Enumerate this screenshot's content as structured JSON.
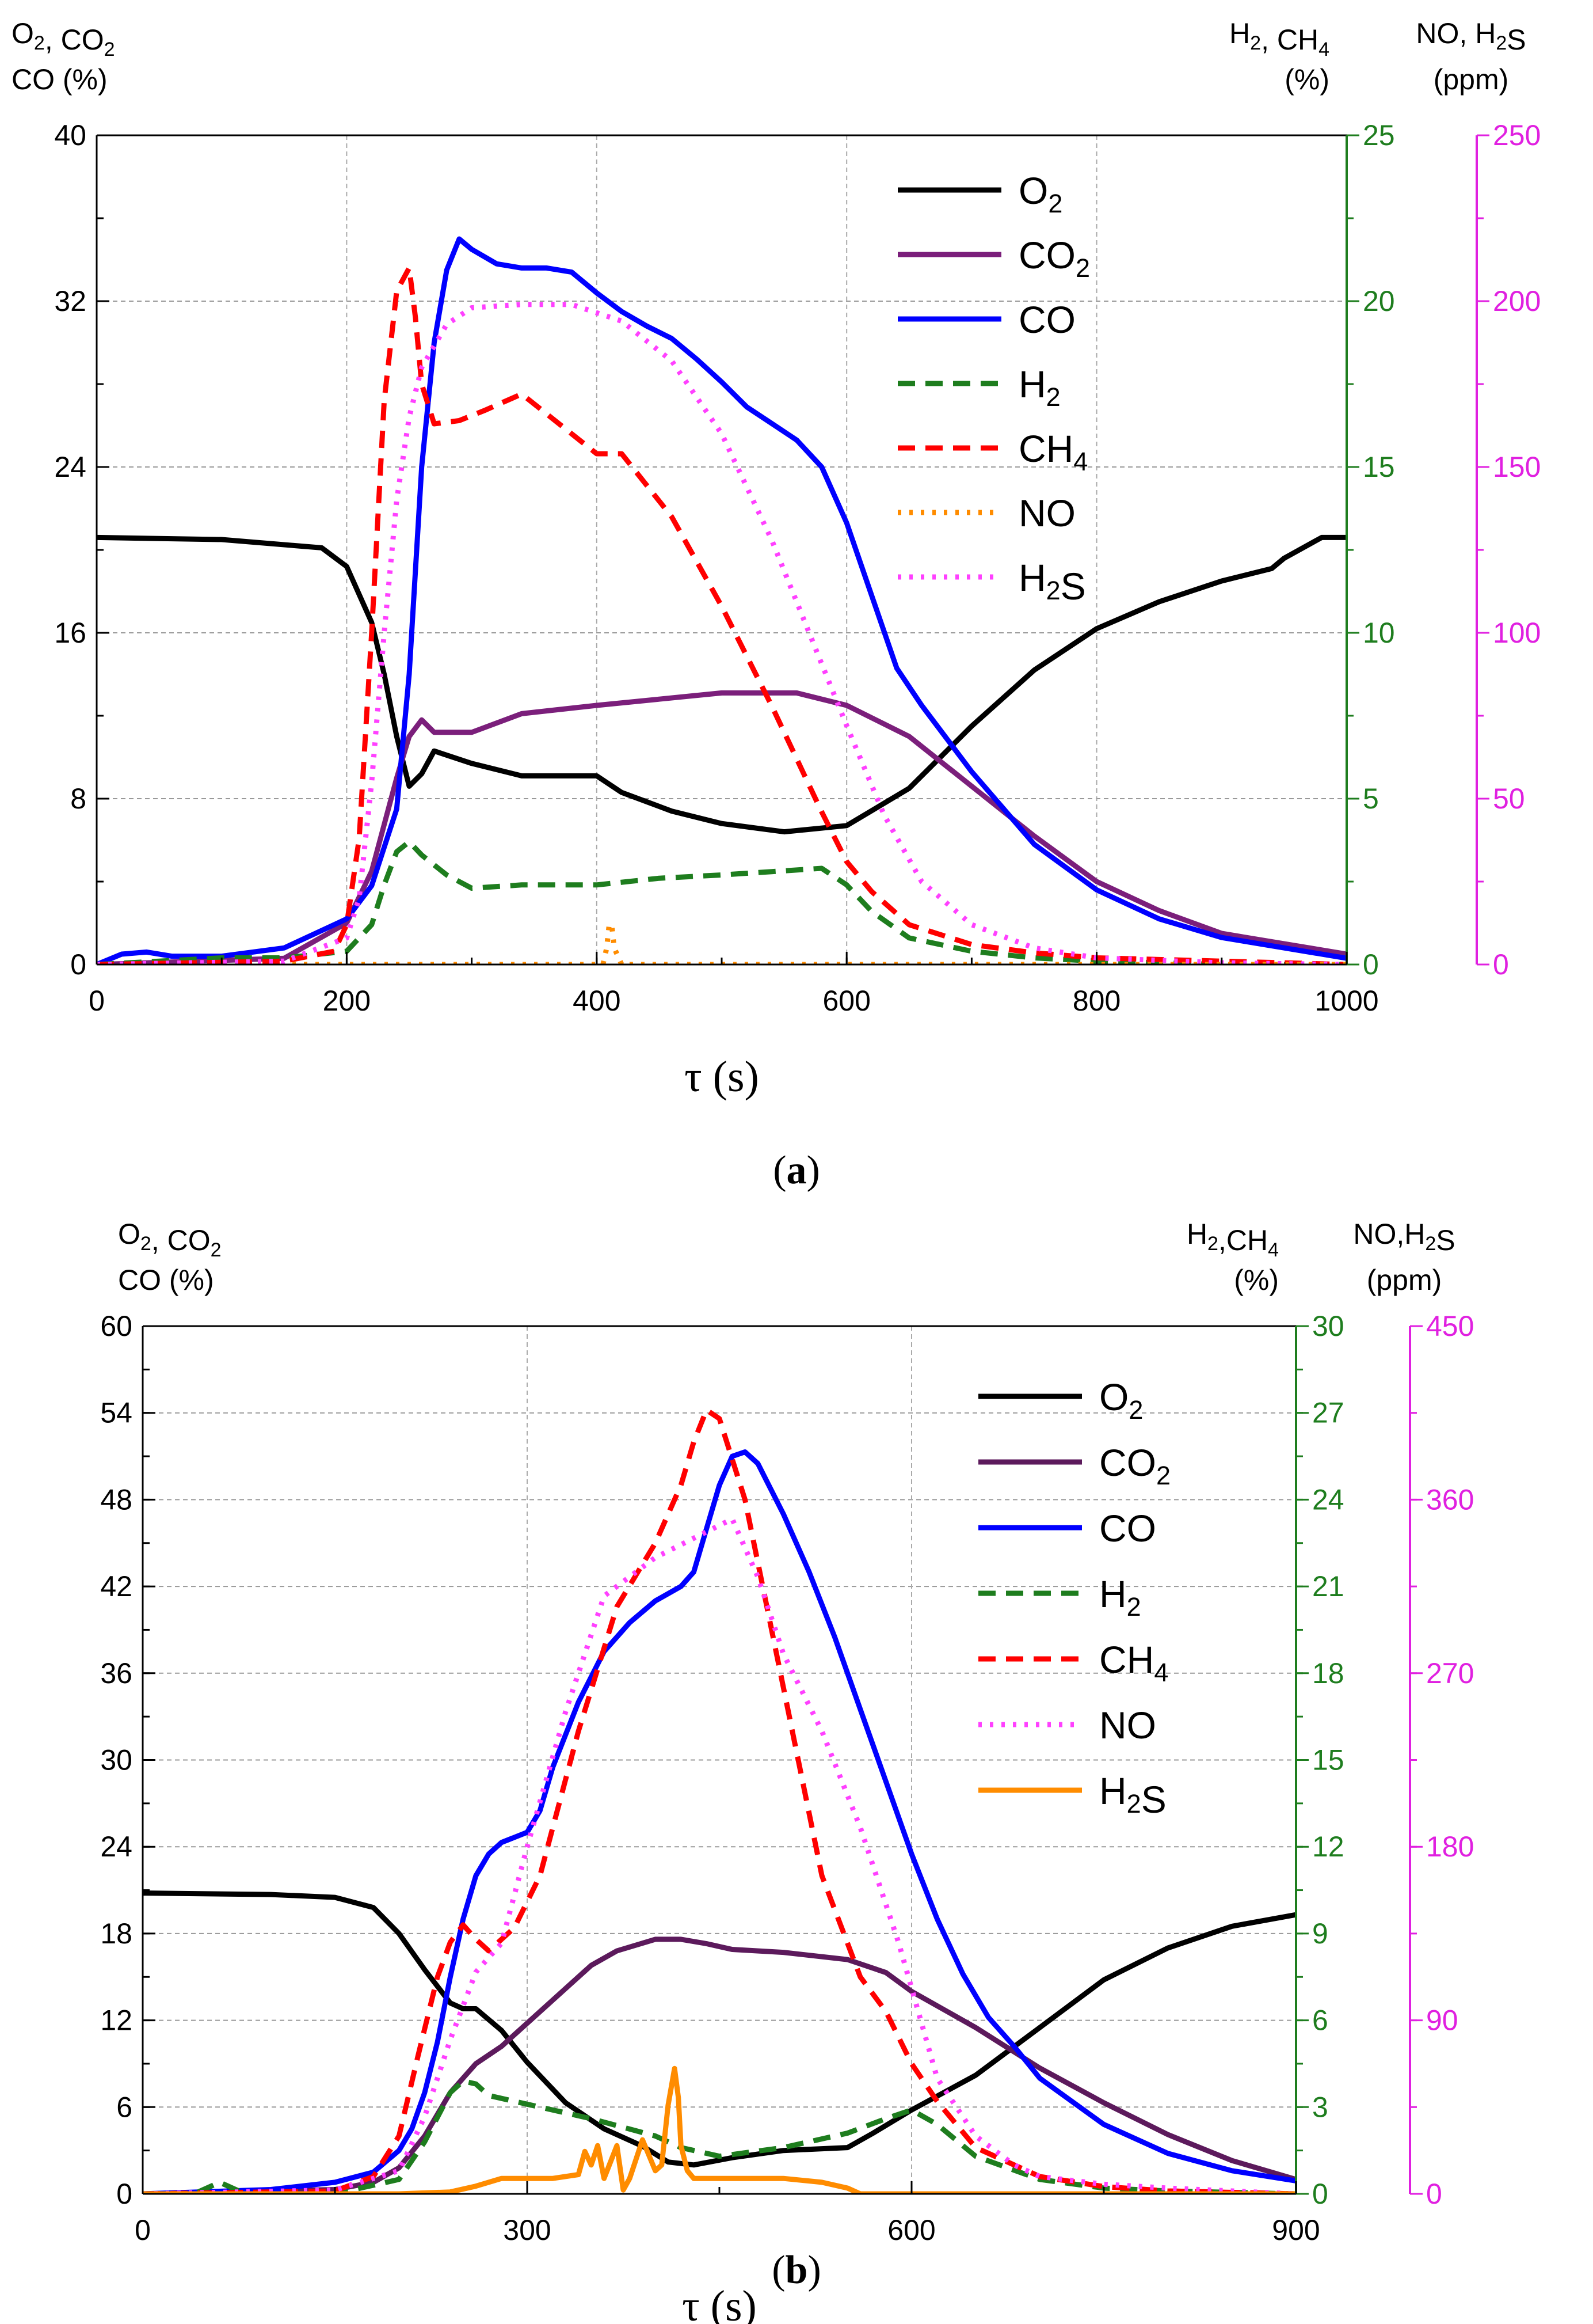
{
  "figure": {
    "caption_a": "(a)",
    "caption_b": "(b)"
  },
  "chart_data": [
    {
      "type": "line",
      "panel": "a",
      "xlabel": "τ (s)",
      "xlim": [
        0,
        1000
      ],
      "xticks": [
        0,
        200,
        400,
        600,
        800,
        1000
      ],
      "axes": {
        "left": {
          "label_lines": [
            "O₂, CO₂",
            "CO (%)"
          ],
          "ylim": [
            0,
            40
          ],
          "ticks": [
            0,
            8,
            16,
            24,
            32,
            40
          ],
          "color": "#000000"
        },
        "right1": {
          "label_lines": [
            "H₂, CH₄",
            "(%)"
          ],
          "ylim": [
            0,
            25
          ],
          "ticks": [
            0,
            5,
            10,
            15,
            20,
            25
          ],
          "color": "#1e7d1e"
        },
        "right2": {
          "label_lines": [
            "NO, H₂S",
            "(ppm)"
          ],
          "ylim": [
            0,
            250
          ],
          "ticks": [
            0,
            50,
            100,
            150,
            200,
            250
          ],
          "color": "#e020e0"
        }
      },
      "grid": true,
      "legend_position": "top-right",
      "series": [
        {
          "name": "O₂",
          "axis": "left",
          "color": "#000000",
          "style": "solid",
          "x": [
            0,
            100,
            180,
            200,
            220,
            230,
            240,
            250,
            260,
            270,
            300,
            340,
            400,
            420,
            460,
            500,
            550,
            600,
            650,
            700,
            750,
            800,
            850,
            900,
            940,
            950,
            980,
            1000
          ],
          "y": [
            20.6,
            20.5,
            20.1,
            19.2,
            16.5,
            14,
            11,
            8.6,
            9.2,
            10.3,
            9.7,
            9.1,
            9.1,
            8.3,
            7.4,
            6.8,
            6.4,
            6.7,
            8.5,
            11.5,
            14.2,
            16.2,
            17.5,
            18.5,
            19.1,
            19.6,
            20.6,
            20.6
          ]
        },
        {
          "name": "CO₂",
          "axis": "left",
          "color": "#7b1f7b",
          "style": "solid",
          "x": [
            0,
            150,
            200,
            220,
            240,
            250,
            260,
            270,
            300,
            340,
            400,
            450,
            500,
            560,
            600,
            650,
            700,
            750,
            800,
            850,
            900,
            1000
          ],
          "y": [
            0,
            0.3,
            2,
            4.5,
            9,
            11,
            11.8,
            11.2,
            11.2,
            12.1,
            12.5,
            12.8,
            13.1,
            13.1,
            12.5,
            11,
            8.6,
            6.2,
            4,
            2.6,
            1.5,
            0.5
          ]
        },
        {
          "name": "CO",
          "axis": "left",
          "color": "#0000ff",
          "style": "solid",
          "x": [
            0,
            20,
            40,
            60,
            100,
            150,
            200,
            220,
            240,
            250,
            260,
            270,
            280,
            290,
            300,
            320,
            340,
            360,
            380,
            400,
            420,
            440,
            460,
            480,
            500,
            520,
            540,
            560,
            580,
            600,
            620,
            640,
            660,
            700,
            750,
            800,
            850,
            900,
            950,
            1000
          ],
          "y": [
            0,
            0.5,
            0.6,
            0.4,
            0.4,
            0.8,
            2.2,
            3.8,
            7.5,
            14,
            24,
            30,
            33.5,
            35,
            34.5,
            33.8,
            33.6,
            33.6,
            33.4,
            32.4,
            31.5,
            30.8,
            30.2,
            29.2,
            28.1,
            26.9,
            26.1,
            25.3,
            24,
            21.3,
            17.8,
            14.3,
            12.5,
            9.3,
            5.8,
            3.6,
            2.2,
            1.3,
            0.8,
            0.3
          ]
        },
        {
          "name": "H₂",
          "axis": "right1",
          "color": "#1e7d1e",
          "style": "dashed",
          "x": [
            0,
            50,
            100,
            150,
            200,
            220,
            230,
            240,
            250,
            260,
            280,
            300,
            340,
            400,
            450,
            500,
            540,
            580,
            600,
            620,
            650,
            700,
            750,
            800,
            900,
            1000
          ],
          "y": [
            0,
            0.1,
            0.2,
            0.2,
            0.4,
            1.2,
            2.4,
            3.4,
            3.7,
            3.3,
            2.7,
            2.3,
            2.4,
            2.4,
            2.6,
            2.7,
            2.8,
            2.9,
            2.4,
            1.6,
            0.8,
            0.4,
            0.2,
            0.1,
            0,
            0
          ]
        },
        {
          "name": "CH₄",
          "axis": "right1",
          "color": "#ff0000",
          "style": "dashed",
          "x": [
            0,
            150,
            190,
            200,
            210,
            220,
            230,
            240,
            250,
            255,
            260,
            270,
            290,
            310,
            340,
            370,
            400,
            420,
            460,
            500,
            540,
            580,
            600,
            620,
            650,
            700,
            750,
            800,
            900,
            1000
          ],
          "y": [
            0,
            0.1,
            0.4,
            1.2,
            3.8,
            10,
            17,
            20.3,
            21,
            19.5,
            17.5,
            16.3,
            16.4,
            16.7,
            17.2,
            16.3,
            15.4,
            15.4,
            13.5,
            10.8,
            7.8,
            4.6,
            3.1,
            2.2,
            1.2,
            0.6,
            0.35,
            0.2,
            0.1,
            0
          ]
        },
        {
          "name": "NO",
          "axis": "right2",
          "color": "#ff8c00",
          "style": "dotted",
          "x": [
            0,
            405,
            408,
            410,
            412,
            414,
            420,
            1000
          ],
          "y": [
            0,
            0,
            5,
            12,
            12,
            5,
            0,
            0
          ]
        },
        {
          "name": "H₂S",
          "axis": "right2",
          "color": "#ff40ff",
          "style": "dotted",
          "x": [
            0,
            150,
            200,
            210,
            220,
            230,
            240,
            250,
            260,
            280,
            300,
            340,
            380,
            420,
            460,
            500,
            540,
            570,
            600,
            630,
            660,
            700,
            750,
            800,
            900,
            1000
          ],
          "y": [
            0,
            1,
            8,
            20,
            55,
            100,
            140,
            165,
            180,
            193,
            198,
            199,
            199,
            194,
            182,
            160,
            128,
            100,
            72,
            45,
            25,
            12,
            5,
            2,
            0.5,
            0
          ]
        }
      ]
    },
    {
      "type": "line",
      "panel": "b",
      "xlabel": "τ (s)",
      "xlim": [
        0,
        900
      ],
      "xticks": [
        0,
        300,
        600,
        900
      ],
      "axes": {
        "left": {
          "label_lines": [
            "O₂, CO₂",
            "CO (%)"
          ],
          "ylim": [
            0,
            60
          ],
          "ticks": [
            0,
            6,
            12,
            18,
            24,
            30,
            36,
            42,
            48,
            54,
            60
          ],
          "color": "#000000"
        },
        "right1": {
          "label_lines": [
            "H₂,CH₄",
            "(%)"
          ],
          "ylim": [
            0,
            30
          ],
          "ticks": [
            0,
            3,
            6,
            9,
            12,
            15,
            18,
            21,
            24,
            27,
            30
          ],
          "color": "#1e7d1e"
        },
        "right2": {
          "label_lines": [
            "NO,H₂S",
            "(ppm)"
          ],
          "ylim": [
            0,
            450
          ],
          "ticks": [
            0,
            90,
            180,
            270,
            360,
            450
          ],
          "color": "#e020e0"
        }
      },
      "grid": true,
      "legend_position": "top-right",
      "series": [
        {
          "name": "O₂",
          "axis": "left",
          "color": "#000000",
          "style": "solid",
          "x": [
            0,
            100,
            150,
            180,
            200,
            220,
            240,
            250,
            260,
            280,
            300,
            330,
            360,
            390,
            410,
            430,
            460,
            500,
            550,
            570,
            600,
            650,
            700,
            750,
            800,
            850,
            900
          ],
          "y": [
            20.8,
            20.7,
            20.5,
            19.8,
            18,
            15.5,
            13.2,
            12.8,
            12.8,
            11.3,
            9.1,
            6.3,
            4.5,
            3.3,
            2.2,
            2,
            2.5,
            3,
            3.2,
            4.2,
            5.8,
            8.2,
            11.5,
            14.8,
            17,
            18.5,
            19.3
          ]
        },
        {
          "name": "CO₂",
          "axis": "left",
          "color": "#5c1a5c",
          "style": "solid",
          "x": [
            0,
            150,
            180,
            200,
            220,
            240,
            260,
            280,
            300,
            330,
            350,
            370,
            400,
            420,
            440,
            460,
            500,
            550,
            580,
            600,
            650,
            700,
            750,
            800,
            850,
            900
          ],
          "y": [
            0,
            0.3,
            0.8,
            1.8,
            4,
            7,
            9,
            10.2,
            11.8,
            14.2,
            15.8,
            16.8,
            17.6,
            17.6,
            17.3,
            16.9,
            16.7,
            16.2,
            15.3,
            14,
            11.5,
            8.7,
            6.3,
            4.1,
            2.3,
            1
          ]
        },
        {
          "name": "CO",
          "axis": "left",
          "color": "#0000ff",
          "style": "solid",
          "x": [
            0,
            100,
            150,
            180,
            200,
            210,
            220,
            230,
            240,
            250,
            260,
            270,
            280,
            300,
            310,
            320,
            340,
            360,
            380,
            400,
            420,
            430,
            440,
            450,
            460,
            470,
            480,
            500,
            520,
            540,
            560,
            580,
            600,
            620,
            640,
            660,
            680,
            700,
            750,
            800,
            850,
            900
          ],
          "y": [
            0,
            0.3,
            0.8,
            1.5,
            3,
            4.5,
            7,
            10.5,
            15,
            19,
            22,
            23.5,
            24.3,
            25,
            26.5,
            29.5,
            34,
            37.5,
            39.5,
            41,
            42,
            43,
            46,
            49,
            51,
            51.3,
            50.5,
            47,
            43,
            38.5,
            33.5,
            28.5,
            23.5,
            19,
            15.2,
            12.2,
            10.2,
            8,
            4.8,
            2.8,
            1.6,
            0.9
          ]
        },
        {
          "name": "H₂",
          "axis": "right1",
          "color": "#1e7d1e",
          "style": "dashed",
          "x": [
            0,
            40,
            60,
            80,
            150,
            200,
            220,
            240,
            250,
            260,
            270,
            300,
            350,
            400,
            420,
            450,
            500,
            550,
            580,
            600,
            620,
            650,
            700,
            750,
            800,
            900
          ],
          "y": [
            0,
            0,
            0.4,
            0,
            0,
            0.5,
            1.8,
            3.5,
            3.9,
            3.8,
            3.4,
            3.1,
            2.6,
            2,
            1.6,
            1.3,
            1.6,
            2.1,
            2.6,
            2.9,
            2.4,
            1.3,
            0.5,
            0.2,
            0.1,
            0
          ]
        },
        {
          "name": "CH₄",
          "axis": "right1",
          "color": "#ff0000",
          "style": "dashed",
          "x": [
            0,
            150,
            180,
            200,
            215,
            230,
            240,
            250,
            260,
            270,
            290,
            310,
            340,
            370,
            400,
            420,
            430,
            440,
            450,
            470,
            500,
            530,
            560,
            580,
            600,
            620,
            650,
            700,
            750,
            800,
            900
          ],
          "y": [
            0,
            0.1,
            0.6,
            2,
            4.8,
            7.5,
            8.7,
            9.3,
            8.8,
            8.4,
            9.2,
            11,
            16,
            20.3,
            22.5,
            24.5,
            26,
            27.1,
            26.8,
            24,
            17.5,
            11,
            7.5,
            6.3,
            4.5,
            3.2,
            1.6,
            0.6,
            0.25,
            0.1,
            0
          ]
        },
        {
          "name": "NO",
          "axis": "right2",
          "color": "#ff40ff",
          "style": "dotted",
          "x": [
            0,
            150,
            200,
            220,
            240,
            260,
            280,
            300,
            330,
            360,
            400,
            430,
            460,
            480,
            500,
            530,
            560,
            590,
            620,
            650,
            680,
            700,
            750,
            800,
            900
          ],
          "y": [
            0,
            2,
            12,
            40,
            80,
            115,
            130,
            180,
            250,
            310,
            330,
            340,
            350,
            320,
            280,
            240,
            190,
            130,
            60,
            30,
            15,
            9,
            5,
            3,
            0
          ]
        },
        {
          "name": "H₂S",
          "axis": "right2",
          "color": "#ff8c00",
          "style": "solid",
          "x": [
            0,
            200,
            240,
            260,
            280,
            300,
            320,
            340,
            345,
            350,
            355,
            360,
            370,
            375,
            380,
            390,
            400,
            405,
            410,
            415,
            418,
            420,
            425,
            430,
            460,
            500,
            530,
            550,
            560,
            900
          ],
          "y": [
            0,
            0,
            1,
            4,
            8,
            8,
            8,
            10,
            22,
            15,
            25,
            8,
            25,
            2,
            8,
            28,
            12,
            15,
            46,
            65,
            50,
            25,
            12,
            8,
            8,
            8,
            6,
            3,
            0,
            0
          ]
        }
      ]
    }
  ]
}
